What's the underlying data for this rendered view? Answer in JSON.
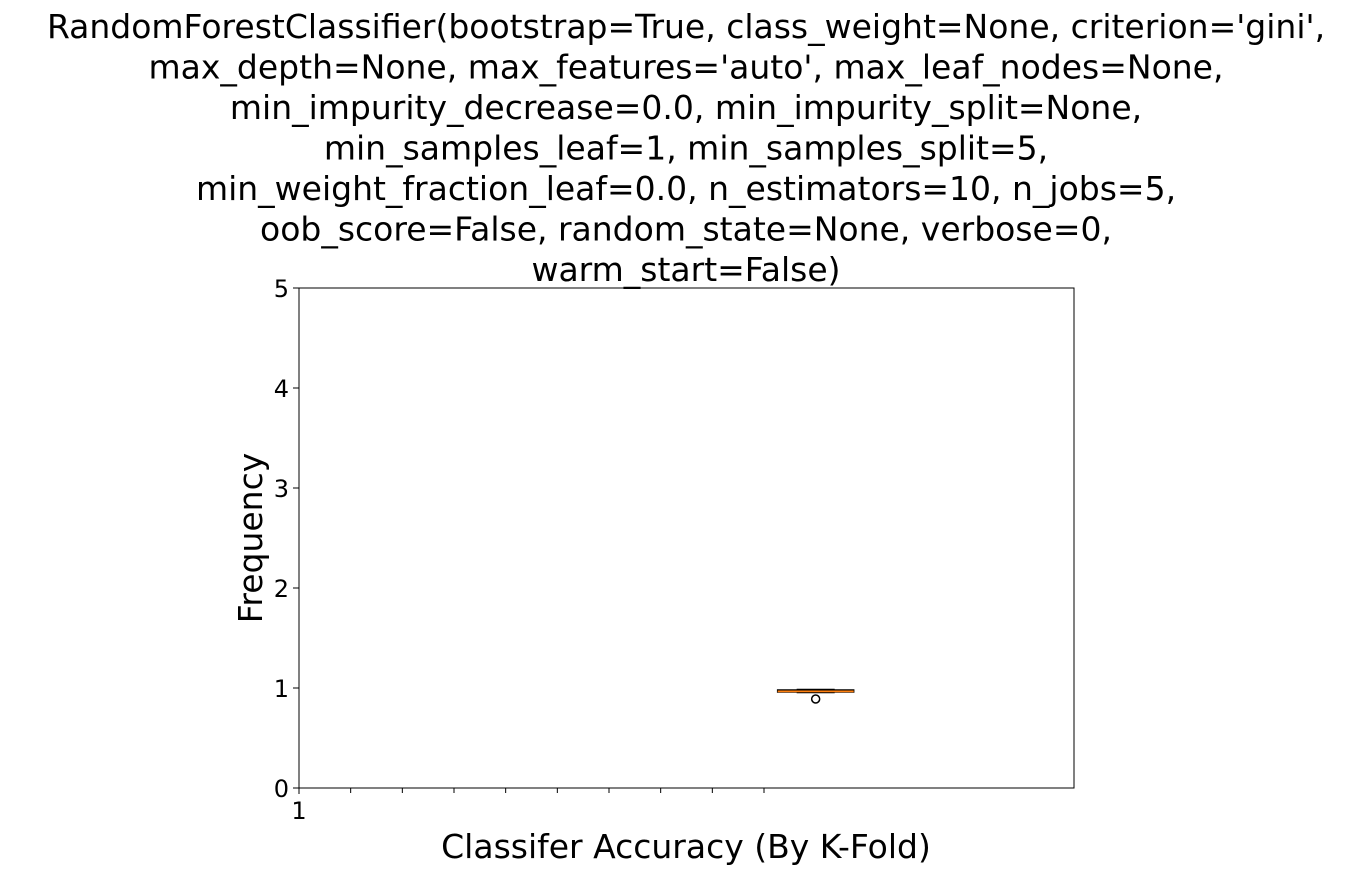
{
  "chart_data": {
    "type": "box",
    "title_lines": [
      "RandomForestClassifier(bootstrap=True, class_weight=None, criterion='gini',",
      "max_depth=None, max_features='auto', max_leaf_nodes=None,",
      "min_impurity_decrease=0.0, min_impurity_split=None,",
      "min_samples_leaf=1, min_samples_split=5,",
      "min_weight_fraction_leaf=0.0, n_estimators=10, n_jobs=5,",
      "oob_score=False, random_state=None, verbose=0,",
      "warm_start=False)"
    ],
    "xlabel": "Classifer Accuracy (By K-Fold)",
    "ylabel": "Frequency",
    "xlim": [
      0.5,
      8
    ],
    "ylim": [
      0,
      5
    ],
    "yticks": [
      0,
      1,
      2,
      3,
      4,
      5
    ],
    "xtick_labels": [
      {
        "value": 0.5,
        "label": "1"
      }
    ],
    "x_minor_ticks": [
      1,
      1.5,
      2,
      2.5,
      3,
      3.5,
      4,
      4.5,
      5
    ],
    "grid": false,
    "box": {
      "position": 5.5,
      "q1": 0.96,
      "median": 0.966,
      "q3": 0.98,
      "whisker_low": 0.955,
      "whisker_high": 0.985,
      "outliers": [
        0.89
      ]
    },
    "colors": {
      "box": "#000000",
      "median": "#ff7f0e",
      "frame": "#000000"
    }
  }
}
